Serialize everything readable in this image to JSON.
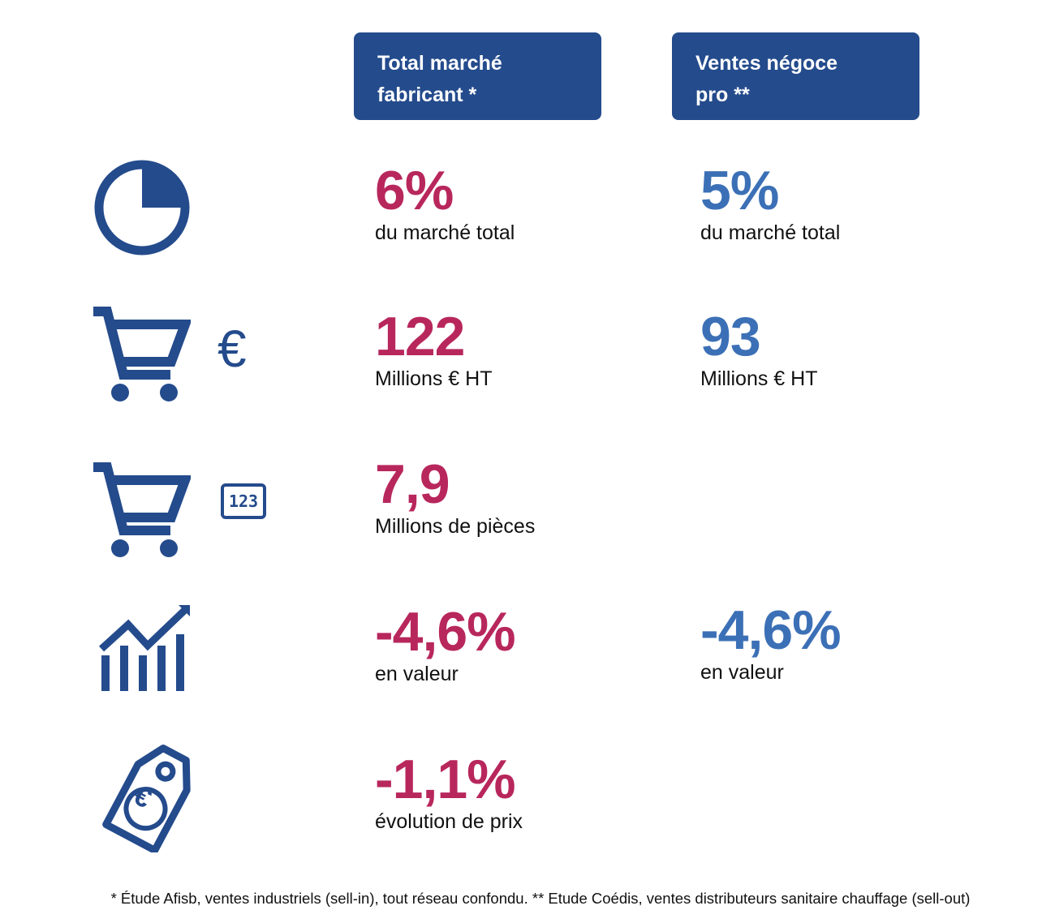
{
  "headers": {
    "left": [
      "Total marché",
      "fabricant *"
    ],
    "right": [
      "Ventes négoce",
      "pro **"
    ]
  },
  "rows": [
    {
      "icon": "pie-chart-icon",
      "left": {
        "value": "6%",
        "label": "du marché total"
      },
      "right": {
        "value": "5%",
        "label": "du marché total"
      }
    },
    {
      "icon": "shopping-cart-euro-icon",
      "left": {
        "value": "122",
        "label": "Millions € HT"
      },
      "right": {
        "value": "93",
        "label": "Millions € HT"
      }
    },
    {
      "icon": "shopping-cart-number-icon",
      "left": {
        "value": "7,9",
        "label": "Millions de pièces"
      }
    },
    {
      "icon": "trend-chart-icon",
      "left": {
        "value": "-4,6%",
        "label": "en valeur"
      },
      "right": {
        "value": "-4,6%",
        "label": "en valeur"
      }
    },
    {
      "icon": "price-tag-euro-icon",
      "left": {
        "value": "-1,1%",
        "label": "évolution de prix"
      }
    }
  ],
  "icon_text": {
    "euro": "€",
    "number": "123"
  },
  "colors": {
    "header_bg": "#244b8c",
    "icon": "#244b8c",
    "left_value": "#b8275c",
    "right_value": "#3c70b6"
  },
  "footnote": "* Étude Afisb, ventes industriels (sell-in), tout réseau confondu. ** Etude Coédis, ventes distributeurs sanitaire chauffage (sell-out)"
}
